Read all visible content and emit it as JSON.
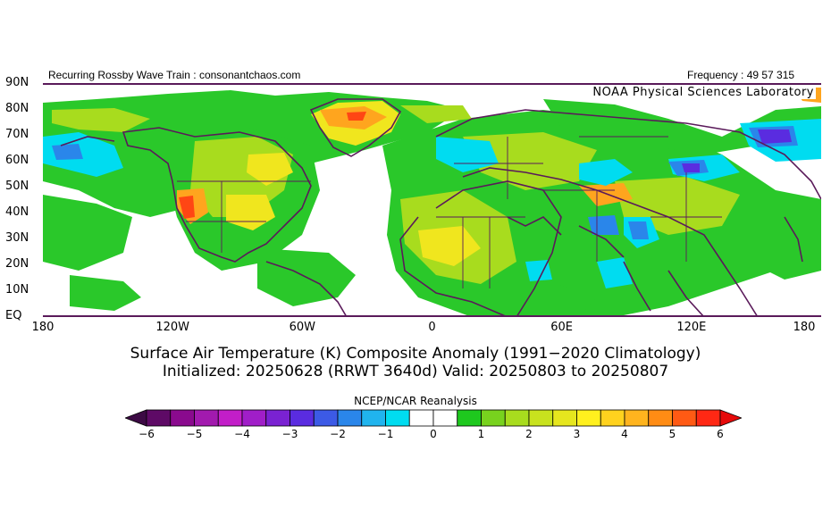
{
  "header": {
    "left_text": "Recurring Rossby Wave Train : consonantchaos.com",
    "right_text": "Frequency : 49 57 315"
  },
  "map": {
    "credit": "NOAA Physical Sciences Laboratory",
    "lat_labels": [
      "90N",
      "80N",
      "70N",
      "60N",
      "50N",
      "40N",
      "30N",
      "20N",
      "10N",
      "EQ"
    ],
    "lon_labels": [
      "180",
      "120W",
      "60W",
      "0",
      "60E",
      "120E",
      "180"
    ]
  },
  "title": {
    "line1": "Surface Air Temperature (K) Composite Anomaly (1991−2020 Climatology)",
    "line2": "Initialized: 20250628 (RRWT 3640d) Valid: 20250803 to 20250807"
  },
  "source": "NCEP/NCAR Reanalysis",
  "colorbar": {
    "tick_labels": [
      "−6",
      "−5",
      "−4",
      "−3",
      "−2",
      "−1",
      "0",
      "1",
      "2",
      "3",
      "4",
      "5",
      "6"
    ],
    "colors": [
      "#5e0a66",
      "#8a0a8e",
      "#a21aae",
      "#c21ec8",
      "#a01ec8",
      "#7a22d2",
      "#5a2ce0",
      "#3c5ae6",
      "#2a86ea",
      "#20b4ee",
      "#00dcf0",
      "#ffffff",
      "#ffffff",
      "#1ec81e",
      "#78d21e",
      "#a8dc1e",
      "#c8e21e",
      "#e6e61e",
      "#fff01e",
      "#ffd21e",
      "#ffb41e",
      "#ff8c14",
      "#ff5a14",
      "#ff2814"
    ],
    "low_arrow_color": "#3c0a44",
    "high_arrow_color": "#e60a0a"
  }
}
